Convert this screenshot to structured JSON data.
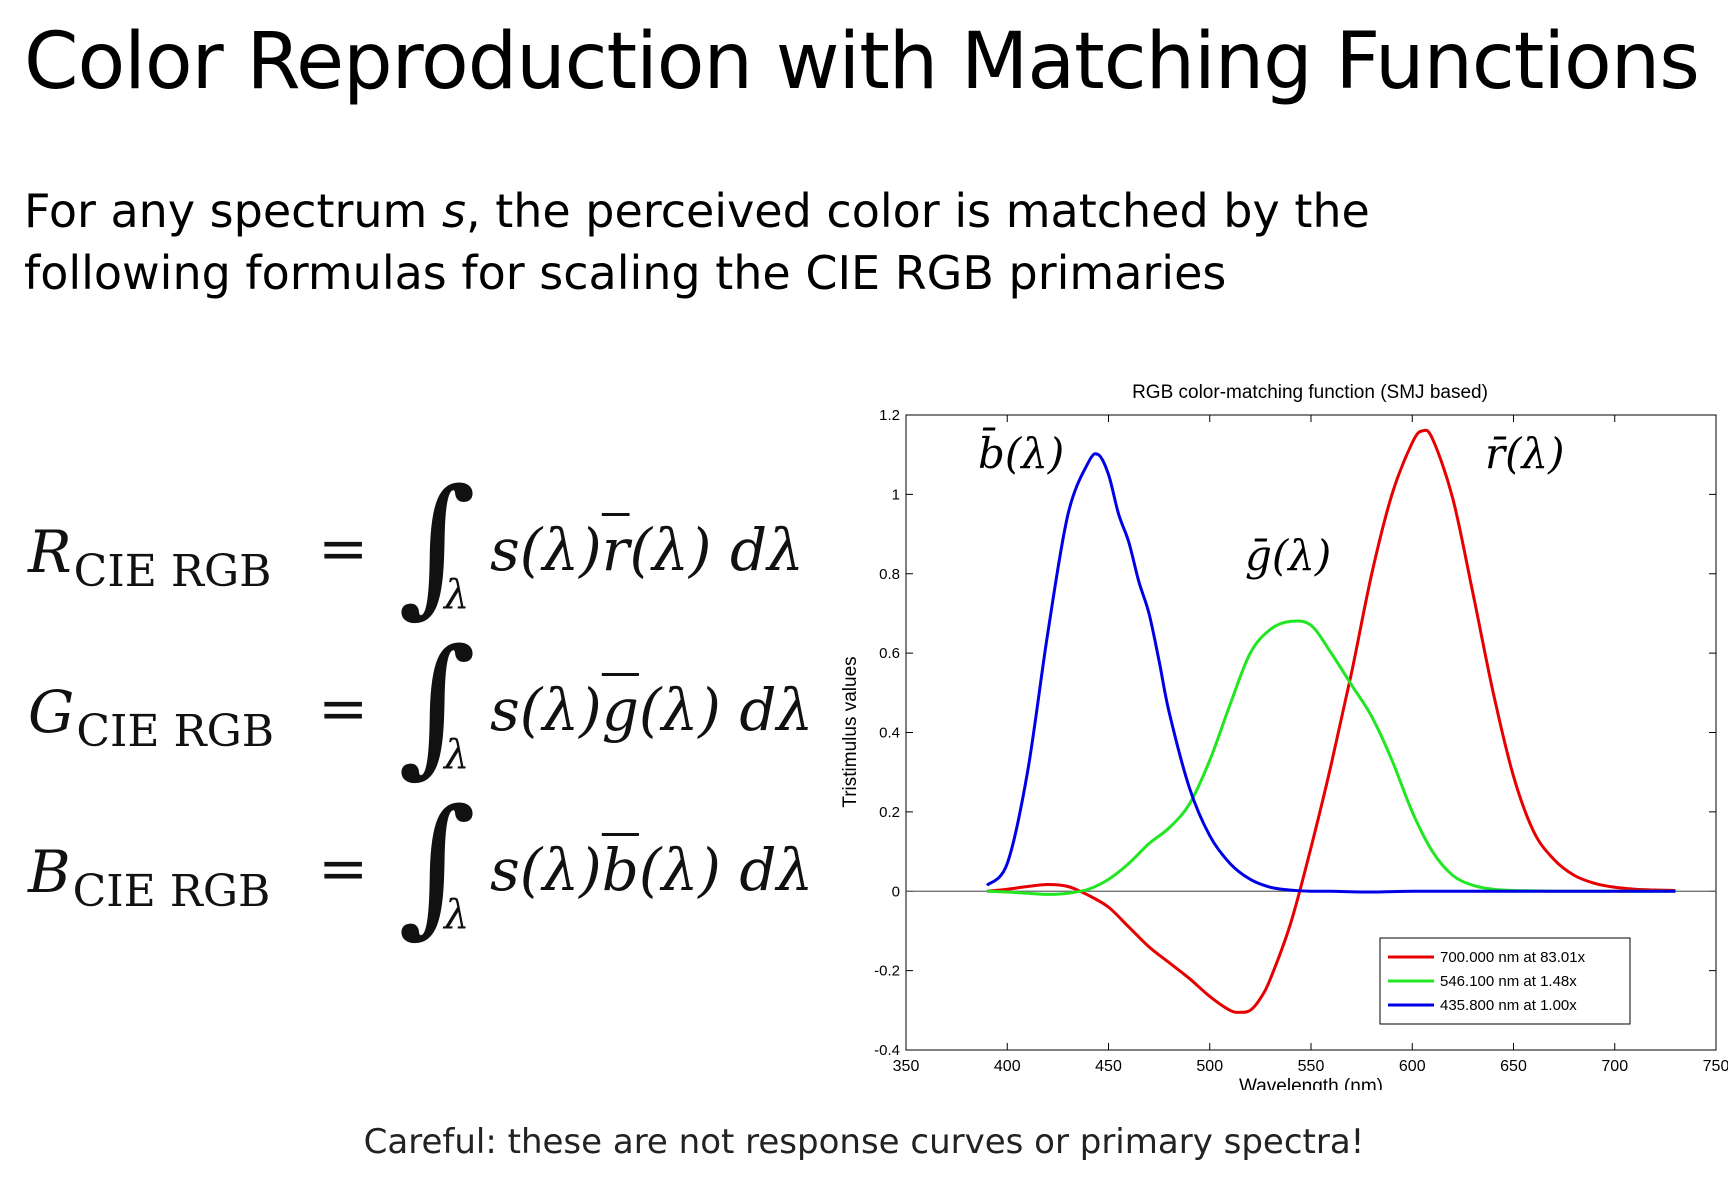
{
  "slide": {
    "title": "Color Reproduction with Matching Functions",
    "subtitle_pre": "For any spectrum ",
    "subtitle_sym": "s",
    "subtitle_post": ", the perceived color is matched by the following formulas for scaling the CIE RGB primaries",
    "footer": "Careful: these are not response curves or primary spectra!"
  },
  "equations": [
    {
      "lhs": "R",
      "sub": "CIE RGB",
      "eq": "=",
      "integral": "∫",
      "limit": "λ",
      "rhs_pre": "s(λ)",
      "rhs_fn": "r",
      "rhs_post": "(λ) dλ"
    },
    {
      "lhs": "G",
      "sub": "CIE RGB",
      "eq": "=",
      "integral": "∫",
      "limit": "λ",
      "rhs_pre": "s(λ)",
      "rhs_fn": "g",
      "rhs_post": "(λ) dλ"
    },
    {
      "lhs": "B",
      "sub": "CIE RGB",
      "eq": "=",
      "integral": "∫",
      "limit": "λ",
      "rhs_pre": "s(λ)",
      "rhs_fn": "b",
      "rhs_post": "(λ) dλ"
    }
  ],
  "chart_data": {
    "type": "line",
    "title": "RGB color-matching function (SMJ based)",
    "xlabel": "Wavelength (nm)",
    "ylabel": "Tristimulus values",
    "xlim": [
      350,
      750
    ],
    "ylim": [
      -0.4,
      1.2
    ],
    "xticks": [
      350,
      400,
      450,
      500,
      550,
      600,
      650,
      700,
      750
    ],
    "yticks": [
      -0.4,
      -0.2,
      0,
      0.2,
      0.4,
      0.6,
      0.8,
      1,
      1.2
    ],
    "ytick_labels": [
      "-0.4",
      "-0.2",
      "0",
      "0.2",
      "0.4",
      "0.6",
      "0.8",
      "1",
      "1.2"
    ],
    "grid": false,
    "legend_position": "bottom-right",
    "annotations": [
      "b̄(λ)",
      "ḡ(λ)",
      "r̄(λ)"
    ],
    "series": [
      {
        "name": "700.000 nm at 83.01x",
        "color": "#e60000",
        "x": [
          390,
          400,
          410,
          420,
          430,
          440,
          450,
          460,
          470,
          480,
          490,
          500,
          510,
          515,
          520,
          525,
          530,
          540,
          550,
          560,
          570,
          580,
          590,
          600,
          605,
          610,
          620,
          630,
          640,
          650,
          660,
          670,
          680,
          690,
          700,
          710,
          720,
          730
        ],
        "y": [
          0.0,
          0.005,
          0.012,
          0.017,
          0.012,
          -0.01,
          -0.04,
          -0.09,
          -0.14,
          -0.18,
          -0.22,
          -0.265,
          -0.3,
          -0.305,
          -0.3,
          -0.27,
          -0.22,
          -0.08,
          0.11,
          0.32,
          0.55,
          0.8,
          1.0,
          1.13,
          1.16,
          1.14,
          0.99,
          0.75,
          0.5,
          0.29,
          0.15,
          0.08,
          0.04,
          0.02,
          0.01,
          0.005,
          0.003,
          0.002
        ]
      },
      {
        "name": "546.100 nm at  1.48x",
        "color": "#22e622",
        "x": [
          390,
          400,
          410,
          420,
          430,
          440,
          450,
          460,
          470,
          480,
          490,
          500,
          510,
          520,
          530,
          540,
          550,
          560,
          570,
          580,
          590,
          600,
          610,
          620,
          630,
          640,
          650,
          660,
          670,
          680,
          690,
          700,
          710,
          720,
          730
        ],
        "y": [
          0.0,
          -0.002,
          -0.005,
          -0.008,
          -0.005,
          0.005,
          0.03,
          0.07,
          0.12,
          0.16,
          0.22,
          0.33,
          0.47,
          0.6,
          0.66,
          0.68,
          0.67,
          0.6,
          0.52,
          0.44,
          0.33,
          0.2,
          0.1,
          0.04,
          0.015,
          0.005,
          0.002,
          0.001,
          0.0,
          0.0,
          0.0,
          0.0,
          0.0,
          0.0,
          0.0
        ]
      },
      {
        "name": "435.800 nm at  1.00x",
        "color": "#0000e6",
        "x": [
          390,
          400,
          410,
          420,
          430,
          440,
          445,
          450,
          455,
          460,
          465,
          470,
          475,
          480,
          490,
          500,
          510,
          520,
          530,
          540,
          550,
          560,
          580,
          600,
          650,
          700,
          730
        ],
        "y": [
          0.015,
          0.07,
          0.3,
          0.65,
          0.95,
          1.08,
          1.1,
          1.05,
          0.95,
          0.88,
          0.78,
          0.7,
          0.58,
          0.45,
          0.26,
          0.14,
          0.07,
          0.03,
          0.01,
          0.003,
          0.0,
          0.0,
          -0.002,
          0.0,
          0.0,
          0.0,
          0.0
        ]
      }
    ]
  }
}
